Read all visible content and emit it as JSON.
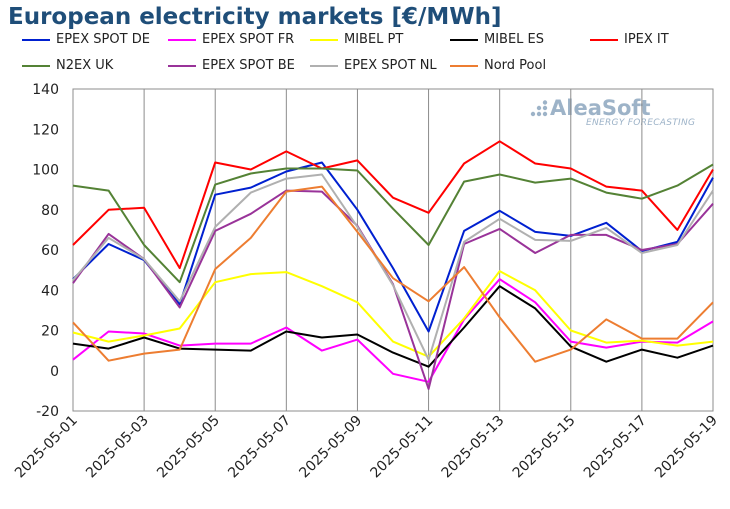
{
  "title": "European electricity markets [€/MWh]",
  "logo": {
    "name": "AleaSoft",
    "tagline": "ENERGY FORECASTING",
    "color": "#9db3c8"
  },
  "chart_data": {
    "type": "line",
    "title": "European electricity markets [€/MWh]",
    "ylim": [
      -20,
      140
    ],
    "yticks": [
      -20,
      0,
      20,
      40,
      60,
      80,
      100,
      120,
      140
    ],
    "grid": "vertical",
    "legend_position": "top",
    "x": [
      "2025-05-01",
      "2025-05-02",
      "2025-05-03",
      "2025-05-04",
      "2025-05-05",
      "2025-05-06",
      "2025-05-07",
      "2025-05-08",
      "2025-05-09",
      "2025-05-10",
      "2025-05-11",
      "2025-05-12",
      "2025-05-13",
      "2025-05-14",
      "2025-05-15",
      "2025-05-16",
      "2025-05-17",
      "2025-05-18",
      "2025-05-19"
    ],
    "xtick_labels": [
      "2025-05-01",
      "2025-05-03",
      "2025-05-05",
      "2025-05-07",
      "2025-05-09",
      "2025-05-11",
      "2025-05-13",
      "2025-05-15",
      "2025-05-17",
      "2025-05-19"
    ],
    "series": [
      {
        "name": "EPEX SPOT DE",
        "color": "#0020d0",
        "values": [
          45.5,
          63,
          55,
          33,
          87.5,
          91,
          99,
          103.5,
          80,
          51,
          19.5,
          69.5,
          79.5,
          69,
          67,
          73.5,
          59.5,
          64,
          96
        ]
      },
      {
        "name": "EPEX SPOT FR",
        "color": "#ff00ff",
        "values": [
          5.5,
          19.5,
          18.5,
          12.5,
          13.5,
          13.5,
          21.5,
          10,
          15.5,
          -1.5,
          -5.5,
          25.5,
          45.5,
          34,
          14.5,
          11.5,
          14.5,
          14,
          24.5
        ]
      },
      {
        "name": "MIBEL PT",
        "color": "#ffff00",
        "values": [
          19,
          14.5,
          17.5,
          21,
          44,
          48,
          49,
          42,
          34,
          14.5,
          7,
          26,
          49.5,
          40,
          20,
          14,
          15,
          12.5,
          14.5
        ]
      },
      {
        "name": "MIBEL ES",
        "color": "#000000",
        "values": [
          13.5,
          11,
          16.5,
          11,
          10.5,
          10,
          19.5,
          16.5,
          18,
          9,
          2,
          21.5,
          42,
          31,
          12,
          4.5,
          10.5,
          6.5,
          12.5
        ]
      },
      {
        "name": "IPEX IT",
        "color": "#ff0000",
        "values": [
          62.5,
          80,
          81,
          51,
          103.5,
          100,
          109,
          100.5,
          104.5,
          86,
          78.5,
          103,
          114,
          103,
          100.5,
          91.5,
          89.5,
          70,
          100
        ]
      },
      {
        "name": "N2EX UK",
        "color": "#548235",
        "values": [
          92,
          89.5,
          62.5,
          44,
          92.5,
          98,
          100.5,
          100.5,
          99.5,
          80.5,
          62.5,
          94,
          97.5,
          93.5,
          95.5,
          88.5,
          85.5,
          92,
          102.5
        ]
      },
      {
        "name": "EPEX SPOT BE",
        "color": "#993399",
        "values": [
          43.5,
          68,
          55.5,
          31.5,
          69.5,
          78,
          89.5,
          89,
          72,
          43,
          -9,
          63,
          70.5,
          58.5,
          67.5,
          67.5,
          60,
          63,
          83
        ]
      },
      {
        "name": "EPEX SPOT NL",
        "color": "#b0b0b0",
        "values": [
          45,
          66,
          55.5,
          34.5,
          71.5,
          88.5,
          95.5,
          97.5,
          71.5,
          42.5,
          5.5,
          64,
          75.5,
          65,
          64.5,
          71,
          58.5,
          62.5,
          89.5
        ]
      },
      {
        "name": "Nord Pool",
        "color": "#ed7d31",
        "values": [
          24,
          5,
          8.5,
          10.5,
          50.5,
          66,
          89,
          91.5,
          69,
          46,
          34.5,
          51.5,
          26.5,
          4.5,
          10.5,
          25.5,
          16,
          16,
          34
        ]
      }
    ]
  }
}
